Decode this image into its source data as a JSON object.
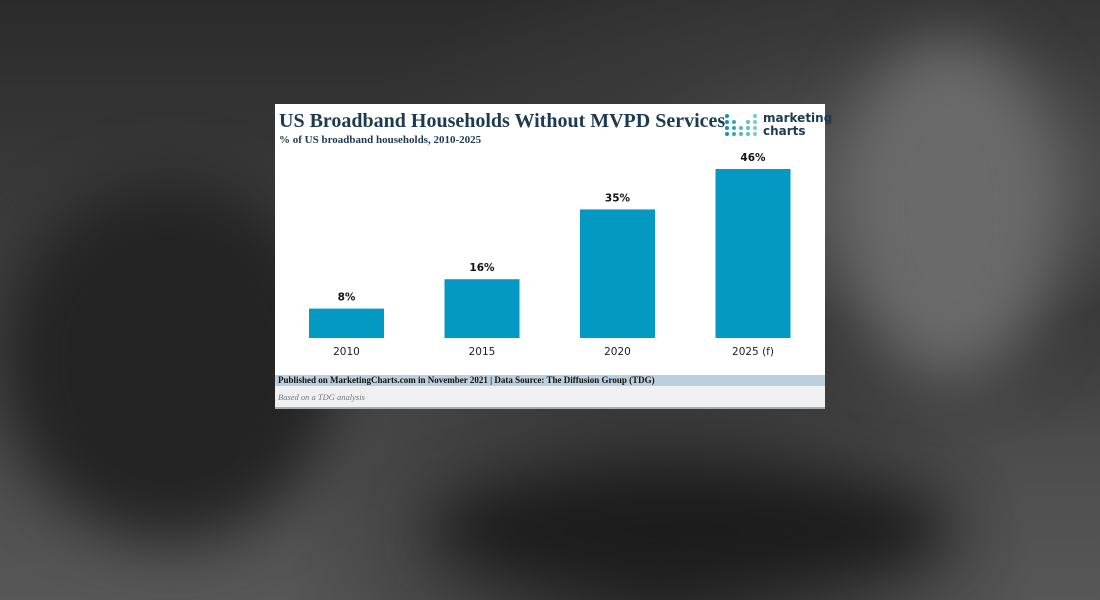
{
  "chart_data": {
    "type": "bar",
    "title": "US Broadband Households Without MVPD Services",
    "subtitle": "% of US broadband households, 2010-2025",
    "categories": [
      "2010",
      "2015",
      "2020",
      "2025 (f)"
    ],
    "values": [
      8,
      16,
      35,
      46
    ],
    "data_labels": [
      "8%",
      "16%",
      "35%",
      "46%"
    ],
    "xlabel": "",
    "ylabel": "",
    "ylim": [
      0,
      46
    ],
    "grid": false,
    "bar_color": "#0399c3"
  },
  "logo": {
    "line1": "marketing",
    "line2": "charts"
  },
  "footer": {
    "source": "Published on MarketingCharts.com in November 2021 | Data Source: The Diffusion Group (TDG)",
    "note": "Based on a TDG analysis"
  }
}
